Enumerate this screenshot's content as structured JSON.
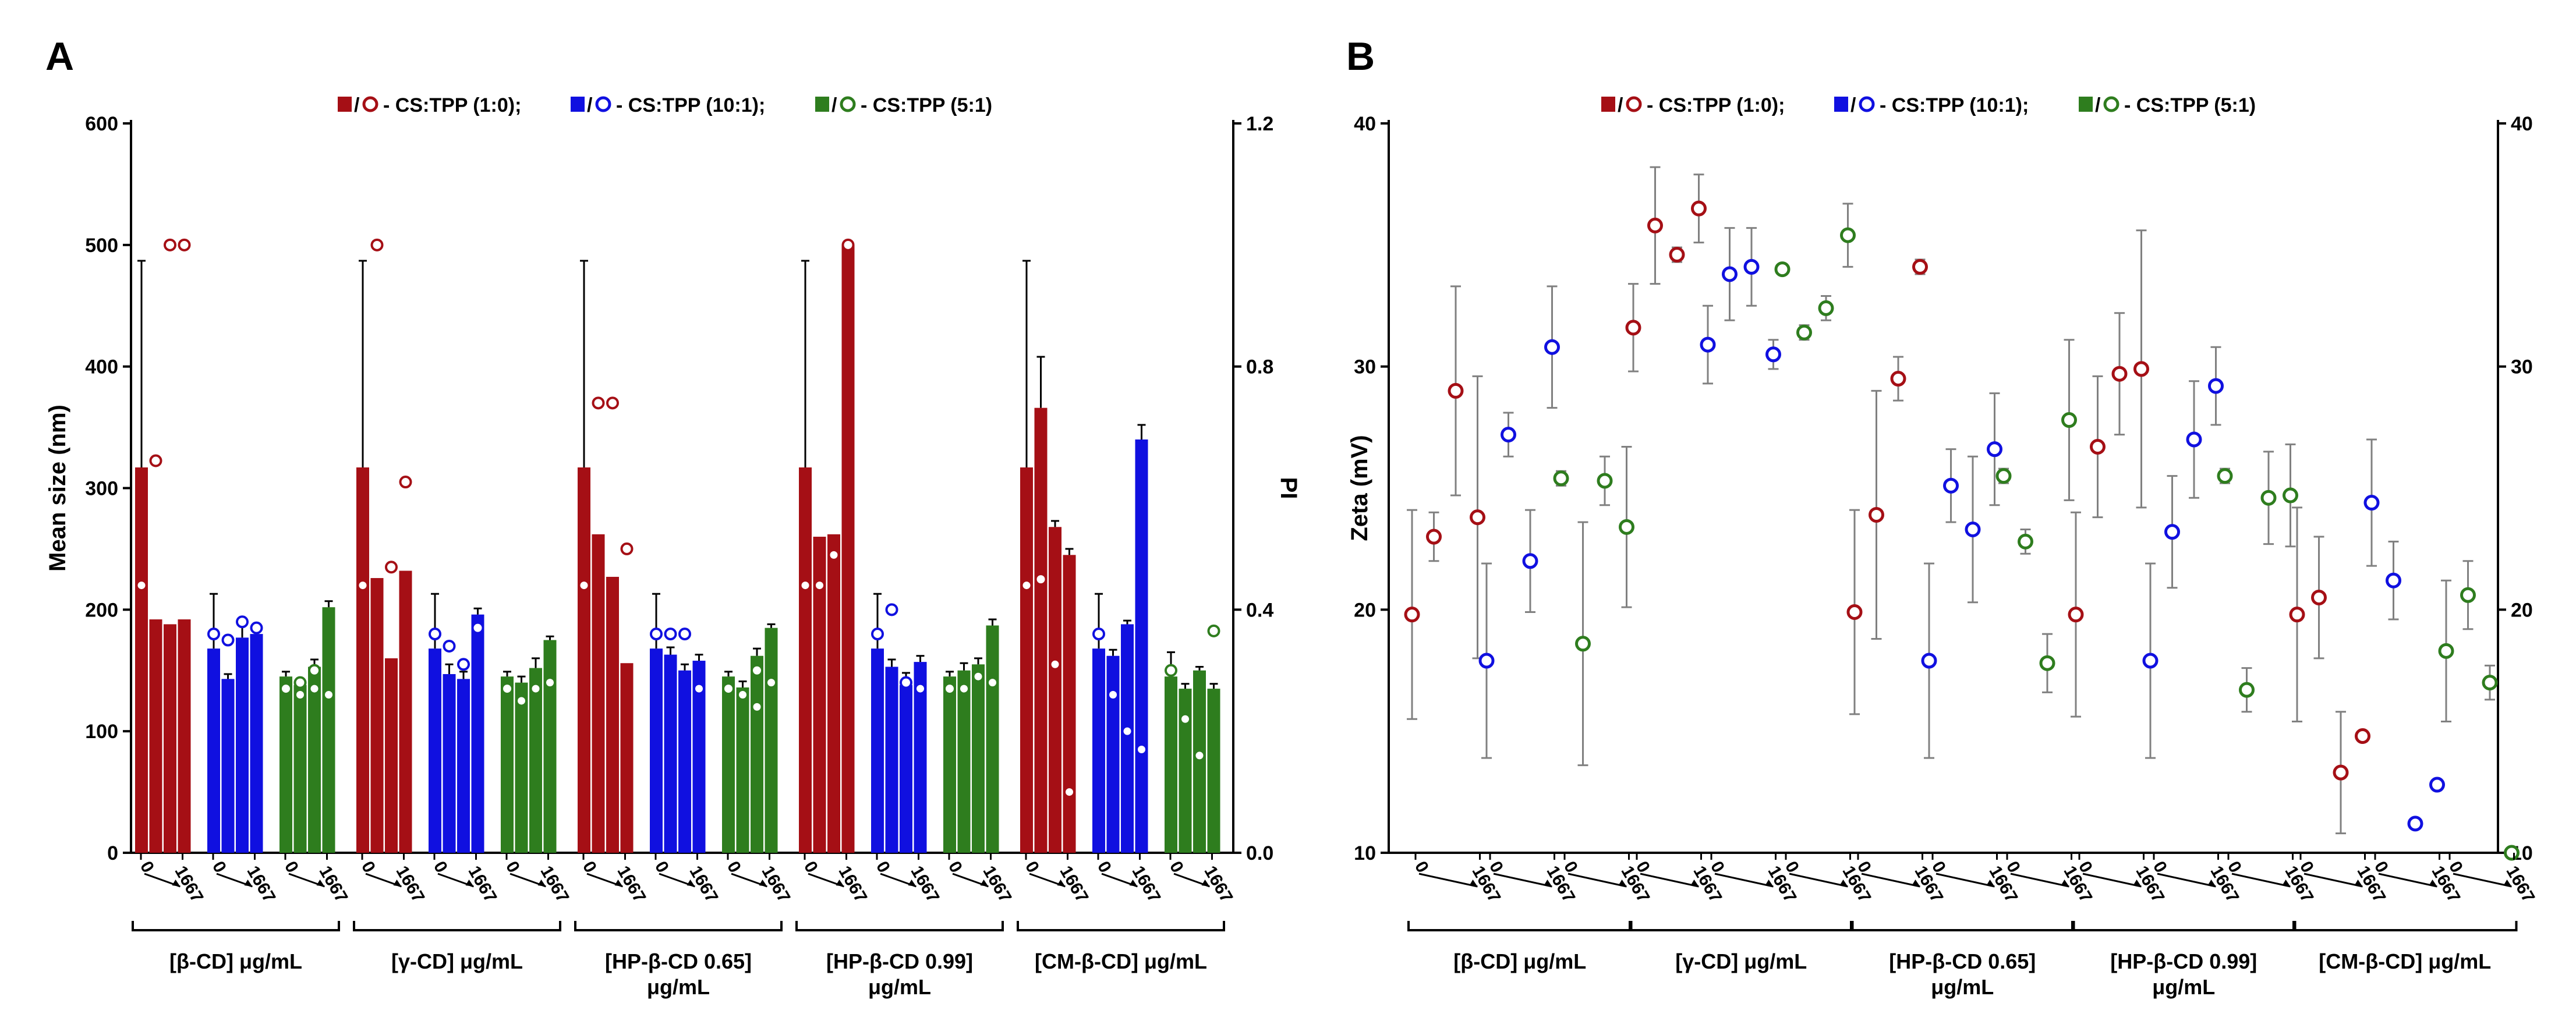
{
  "panels": {
    "A": {
      "letter": "A"
    },
    "B": {
      "letter": "B"
    }
  },
  "legend": {
    "sep": "/",
    "items": [
      {
        "text": "- CS:TPP (1:0);",
        "color": "#a50f15"
      },
      {
        "text": "- CS:TPP (10:1);",
        "color": "#1010e0"
      },
      {
        "text": "- CS:TPP (5:1)",
        "color": "#2e7d1e"
      }
    ]
  },
  "tick_labels": {
    "low": "0",
    "high": "1667"
  },
  "groups": [
    {
      "label": [
        "[β-CD] μg/mL"
      ]
    },
    {
      "label": [
        "[γ-CD] μg/mL"
      ]
    },
    {
      "label": [
        "[HP-β-CD 0.65]",
        "μg/mL"
      ]
    },
    {
      "label": [
        "[HP-β-CD 0.99]",
        "μg/mL"
      ]
    },
    {
      "label": [
        "[CM-β-CD] μg/mL"
      ]
    }
  ],
  "chart_data": [
    {
      "type": "bar",
      "panel": "A",
      "ylabel": "Mean size (nm)",
      "ylim": [
        0,
        600
      ],
      "yticks": [
        0,
        100,
        200,
        300,
        400,
        500,
        600
      ],
      "y2label": "PI",
      "y2lim": [
        0,
        1.2
      ],
      "y2ticks": [
        "0.0",
        "0.4",
        "0.8",
        "1.2"
      ],
      "series_order": [
        "CS:TPP (1:0)",
        "CS:TPP (10:1)",
        "CS:TPP (5:1)"
      ],
      "bars": [
        [
          [
            317,
            192,
            188,
            192
          ],
          [
            168,
            143,
            177,
            180
          ],
          [
            145,
            138,
            153,
            202
          ]
        ],
        [
          [
            317,
            226,
            160,
            232
          ],
          [
            168,
            147,
            143,
            196
          ],
          [
            145,
            140,
            152,
            175
          ]
        ],
        [
          [
            317,
            262,
            227,
            156
          ],
          [
            168,
            163,
            150,
            158
          ],
          [
            145,
            136,
            162,
            185
          ]
        ],
        [
          [
            317,
            260,
            262,
            500
          ],
          [
            168,
            153,
            138,
            157
          ],
          [
            145,
            150,
            155,
            187
          ]
        ],
        [
          [
            317,
            366,
            268,
            245
          ],
          [
            168,
            162,
            188,
            340
          ],
          [
            145,
            135,
            150,
            135
          ]
        ]
      ],
      "bar_errors": [
        [
          [
            170,
            0,
            0,
            0
          ],
          [
            45,
            4,
            10,
            6
          ],
          [
            4,
            5,
            6,
            5
          ]
        ],
        [
          [
            170,
            0,
            0,
            0
          ],
          [
            45,
            8,
            6,
            5
          ],
          [
            4,
            5,
            8,
            3
          ]
        ],
        [
          [
            170,
            0,
            0,
            0
          ],
          [
            45,
            6,
            5,
            5
          ],
          [
            4,
            5,
            6,
            3
          ]
        ],
        [
          [
            170,
            0,
            0,
            0
          ],
          [
            45,
            6,
            10,
            5
          ],
          [
            4,
            6,
            5,
            5
          ]
        ],
        [
          [
            170,
            42,
            5,
            5
          ],
          [
            45,
            5,
            3,
            12
          ],
          [
            20,
            4,
            3,
            4
          ]
        ]
      ],
      "pi_open": [
        [
          [
            null,
            0.645,
            1.0,
            1.0
          ],
          [
            0.36,
            0.35,
            0.38,
            0.37
          ],
          [
            0.27,
            0.28,
            0.3,
            null
          ]
        ],
        [
          [
            null,
            1.0,
            0.47,
            0.61
          ],
          [
            0.36,
            0.34,
            0.31,
            0.37
          ],
          [
            0.27,
            null,
            null,
            null
          ]
        ],
        [
          [
            null,
            0.74,
            0.74,
            0.5
          ],
          [
            0.36,
            0.36,
            0.36,
            null
          ],
          [
            0.27,
            null,
            0.3,
            null
          ]
        ],
        [
          [
            null,
            null,
            null,
            1.0
          ],
          [
            0.36,
            0.4,
            0.28,
            null
          ],
          [
            0.27,
            null,
            null,
            null
          ]
        ],
        [
          [
            null,
            0.45,
            null,
            null
          ],
          [
            0.36,
            null,
            null,
            null
          ],
          [
            0.3,
            null,
            null,
            0.365
          ]
        ]
      ],
      "pi_filled": [
        [
          [
            0.44,
            null,
            null,
            null
          ],
          [
            null,
            null,
            null,
            null
          ],
          [
            null,
            0.26,
            0.27,
            0.26
          ]
        ],
        [
          [
            0.44,
            null,
            null,
            null
          ],
          [
            null,
            null,
            null,
            null
          ],
          [
            null,
            0.25,
            0.27,
            0.28
          ]
        ],
        [
          [
            0.44,
            null,
            null,
            null
          ],
          [
            null,
            null,
            null,
            0.27
          ],
          [
            null,
            0.26,
            0.24,
            0.28
          ]
        ],
        [
          [
            0.44,
            0.44,
            0.49,
            null
          ],
          [
            null,
            null,
            null,
            0.27
          ],
          [
            null,
            0.27,
            0.29,
            0.28
          ]
        ],
        [
          [
            0.44,
            null,
            0.31,
            0.1
          ],
          [
            null,
            0.26,
            0.2,
            0.17
          ],
          [
            null,
            0.22,
            0.16,
            null
          ]
        ]
      ]
    },
    {
      "type": "scatter",
      "panel": "B",
      "ylabel": "Zeta (mV)",
      "ylim": [
        10,
        40
      ],
      "yticks": [
        10,
        20,
        30,
        40
      ],
      "y2lim": [
        10,
        40
      ],
      "y2ticks": [
        10,
        20,
        30,
        40
      ],
      "series_order": [
        "CS:TPP (1:0)",
        "CS:TPP (10:1)",
        "CS:TPP (5:1)"
      ],
      "zeta": [
        [
          [
            19.8,
            23.0,
            29.0,
            23.8
          ],
          [
            17.9,
            27.2,
            22.0,
            30.8
          ],
          [
            25.4,
            18.6,
            25.3,
            23.4
          ]
        ],
        [
          [
            31.6,
            35.8,
            34.6,
            36.5
          ],
          [
            30.9,
            33.8,
            34.1,
            30.5
          ],
          [
            34.0,
            31.4,
            32.4,
            35.4
          ]
        ],
        [
          [
            19.9,
            23.9,
            29.5,
            34.1
          ],
          [
            17.9,
            25.1,
            23.3,
            26.6
          ],
          [
            25.5,
            22.8,
            17.8,
            27.8
          ]
        ],
        [
          [
            19.8,
            26.7,
            29.7,
            29.9
          ],
          [
            17.9,
            23.2,
            27.0,
            29.2
          ],
          [
            25.5,
            16.7,
            24.6,
            24.7
          ]
        ],
        [
          [
            19.8,
            20.5,
            13.3,
            14.8
          ],
          [
            24.4,
            21.2,
            11.2,
            12.8
          ],
          [
            18.3,
            20.6,
            17.0,
            10.0
          ]
        ]
      ],
      "zeta_errors": [
        [
          [
            4.3,
            1.0,
            4.3,
            5.8
          ],
          [
            4.0,
            0.9,
            2.1,
            2.5
          ],
          [
            0.3,
            5.0,
            1.0,
            3.3
          ]
        ],
        [
          [
            1.8,
            2.4,
            0.3,
            1.4
          ],
          [
            1.6,
            1.9,
            1.6,
            0.6
          ],
          [
            0,
            0.3,
            0.5,
            1.3
          ]
        ],
        [
          [
            4.2,
            5.1,
            0.9,
            0.3
          ],
          [
            4.0,
            1.5,
            3.0,
            2.3
          ],
          [
            0.3,
            0.5,
            1.2,
            3.3
          ]
        ],
        [
          [
            4.2,
            2.9,
            2.5,
            5.7
          ],
          [
            4.0,
            2.3,
            2.4,
            1.6
          ],
          [
            0.3,
            0.9,
            1.9,
            2.1
          ]
        ],
        [
          [
            4.4,
            2.5,
            2.5,
            0
          ],
          [
            2.6,
            1.6,
            0,
            0
          ],
          [
            2.9,
            1.4,
            0.7,
            0
          ]
        ]
      ]
    }
  ]
}
